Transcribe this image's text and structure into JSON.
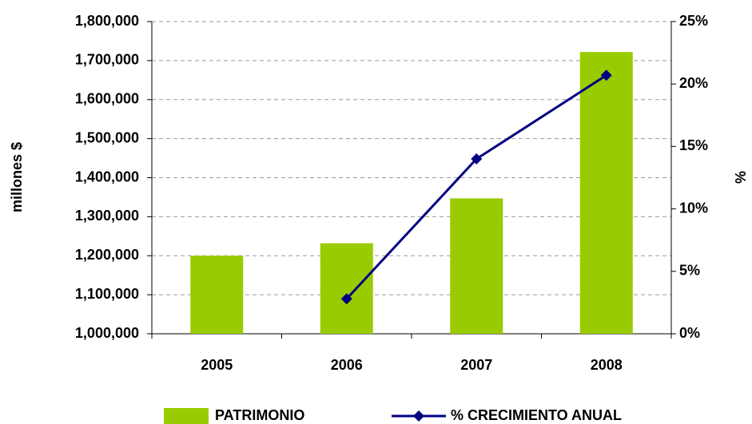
{
  "chart_data": {
    "type": "bar-line",
    "categories": [
      "2005",
      "2006",
      "2007",
      "2008"
    ],
    "series": [
      {
        "name": "PATRIMONIO",
        "type": "bar",
        "color": "#99cc00",
        "values": [
          1200000,
          1232000,
          1347000,
          1722000
        ]
      },
      {
        "name": "% CRECIMIENTO ANUAL",
        "type": "line",
        "axis": "y2",
        "color": "#000080",
        "values": [
          null,
          2.8,
          14.0,
          20.7
        ]
      }
    ],
    "y_label": "millones $",
    "y2_label": "%",
    "ylim": [
      1000000,
      1800000
    ],
    "yticks": [
      {
        "value": 1000000,
        "label": "1,000,000"
      },
      {
        "value": 1100000,
        "label": "1,100,000"
      },
      {
        "value": 1200000,
        "label": "1,200,000"
      },
      {
        "value": 1300000,
        "label": "1,300,000"
      },
      {
        "value": 1400000,
        "label": "1,400,000"
      },
      {
        "value": 1500000,
        "label": "1,500,000"
      },
      {
        "value": 1600000,
        "label": "1,600,000"
      },
      {
        "value": 1700000,
        "label": "1,700,000"
      },
      {
        "value": 1800000,
        "label": "1,800,000"
      }
    ],
    "y2lim": [
      0,
      25
    ],
    "y2ticks": [
      {
        "value": 0,
        "label": "0%"
      },
      {
        "value": 5,
        "label": "5%"
      },
      {
        "value": 10,
        "label": "10%"
      },
      {
        "value": 15,
        "label": "15%"
      },
      {
        "value": 20,
        "label": "20%"
      },
      {
        "value": 25,
        "label": "25%"
      }
    ],
    "grid": true,
    "legend": "bottom"
  }
}
